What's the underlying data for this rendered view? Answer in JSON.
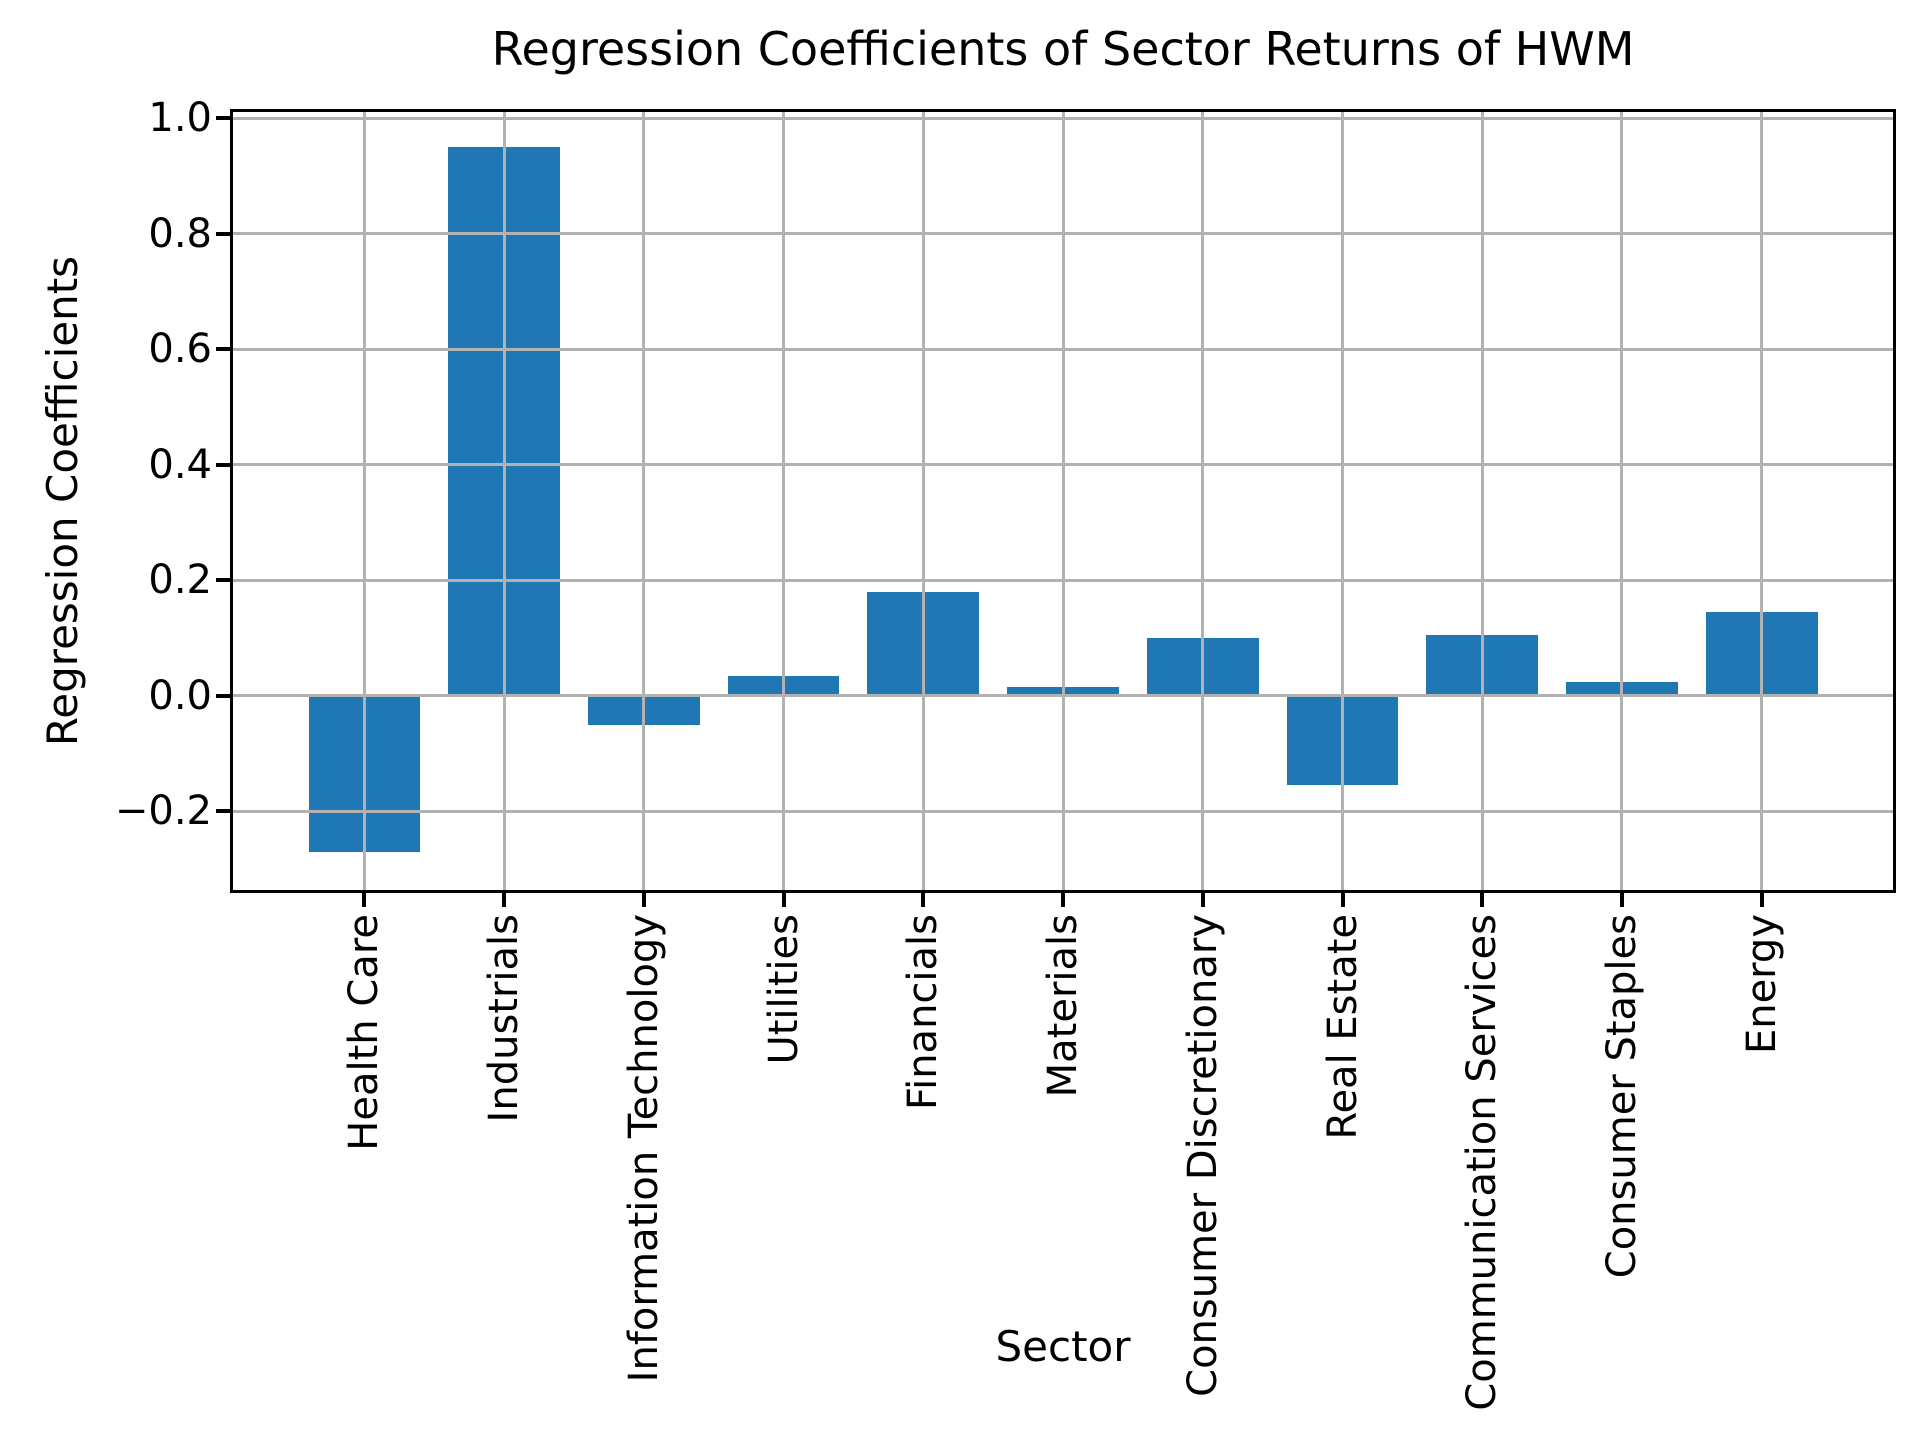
{
  "figure": {
    "title": "Regression Coefficients of Sector Returns of HWM",
    "xlabel": "Sector",
    "ylabel": "Regression Coefficients"
  },
  "chart_data": {
    "type": "bar",
    "title": "Regression Coefficients of Sector Returns of HWM",
    "xlabel": "Sector",
    "ylabel": "Regression Coefficients",
    "categories": [
      "Health Care",
      "Industrials",
      "Information Technology",
      "Utilities",
      "Financials",
      "Materials",
      "Consumer Discretionary",
      "Real Estate",
      "Communication Services",
      "Consumer Staples",
      "Energy"
    ],
    "values": [
      -0.27,
      0.95,
      -0.05,
      0.035,
      0.18,
      0.015,
      0.1,
      -0.155,
      0.105,
      0.025,
      0.145
    ],
    "yticks": [
      1.0,
      0.8,
      0.6,
      0.4,
      0.2,
      0.0,
      -0.2
    ],
    "ytick_labels": [
      "1.0",
      "0.8",
      "0.6",
      "0.4",
      "0.2",
      "0.0",
      "−0.2"
    ],
    "ylim": [
      -0.336,
      1.011
    ],
    "xlim": [
      -0.94,
      10.94
    ],
    "bar_width_fraction": 0.8,
    "bar_color": "#1f77b4",
    "grid": true,
    "grid_color": "#b2b2b2",
    "legend": "none",
    "x_tick_rotation_degrees": 90
  }
}
